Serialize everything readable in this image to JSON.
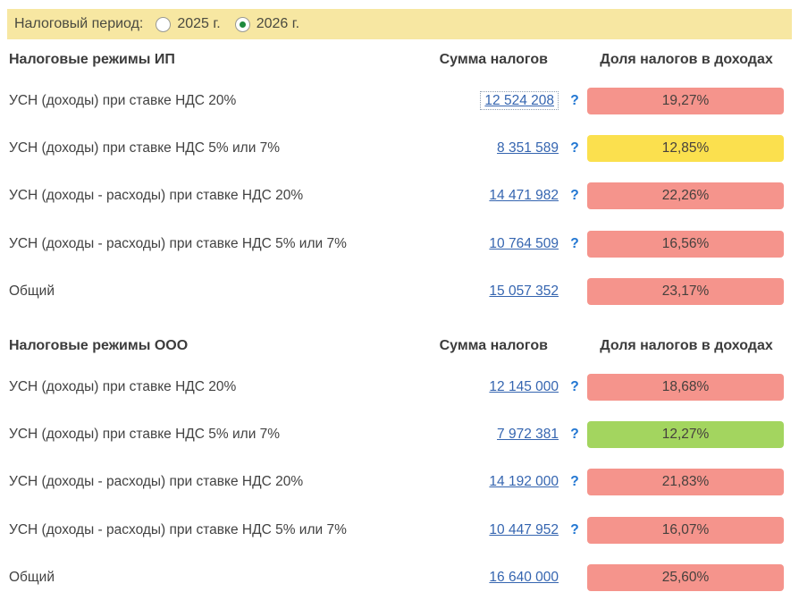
{
  "period_bar": {
    "label": "Налоговый период:",
    "options": [
      {
        "label": "2025 г.",
        "selected": false
      },
      {
        "label": "2026 г.",
        "selected": true
      }
    ]
  },
  "columns": {
    "amount": "Сумма налогов",
    "share": "Доля налогов в доходах"
  },
  "colors": {
    "period_bar_bg": "#F7E7A2",
    "badge_red": "#F5948C",
    "badge_yellow": "#FBE04E",
    "badge_green": "#A3D55F",
    "link_blue": "#3565B0",
    "help_blue": "#2176D2"
  },
  "sections": [
    {
      "title": "Налоговые режимы ИП",
      "rows": [
        {
          "label": "УСН (доходы) при ставке НДС 20%",
          "amount": "12 524 208",
          "help": "?",
          "share": "19,27%",
          "status": "red"
        },
        {
          "label": "УСН (доходы) при ставке НДС 5% или 7%",
          "amount": "8 351 589",
          "help": "?",
          "share": "12,85%",
          "status": "yellow"
        },
        {
          "label": "УСН (доходы - расходы) при ставке НДС 20%",
          "amount": "14 471 982",
          "help": "?",
          "share": "22,26%",
          "status": "red"
        },
        {
          "label": "УСН (доходы - расходы) при ставке НДС 5% или 7%",
          "amount": "10 764 509",
          "help": "?",
          "share": "16,56%",
          "status": "red"
        },
        {
          "label": "Общий",
          "amount": "15 057 352",
          "help": "",
          "share": "23,17%",
          "status": "red"
        }
      ]
    },
    {
      "title": "Налоговые режимы ООО",
      "rows": [
        {
          "label": "УСН (доходы) при ставке НДС 20%",
          "amount": "12 145 000",
          "help": "?",
          "share": "18,68%",
          "status": "red"
        },
        {
          "label": "УСН (доходы) при ставке НДС 5% или 7%",
          "amount": "7 972 381",
          "help": "?",
          "share": "12,27%",
          "status": "green"
        },
        {
          "label": "УСН (доходы - расходы) при ставке НДС 20%",
          "amount": "14 192 000",
          "help": "?",
          "share": "21,83%",
          "status": "red"
        },
        {
          "label": "УСН (доходы - расходы) при ставке НДС 5% или 7%",
          "amount": "10 447 952",
          "help": "?",
          "share": "16,07%",
          "status": "red"
        },
        {
          "label": "Общий",
          "amount": "16 640 000",
          "help": "",
          "share": "25,60%",
          "status": "red"
        }
      ]
    }
  ]
}
